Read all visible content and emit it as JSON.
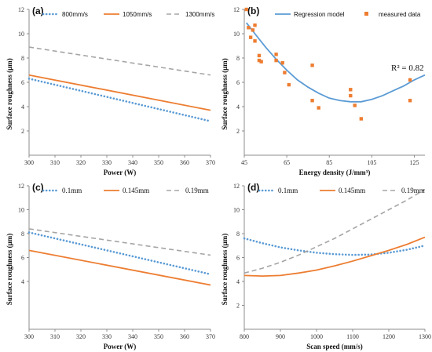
{
  "colors": {
    "blue": "#5B9BD5",
    "orange": "#ED7D31",
    "gray": "#A5A5A5",
    "axis": "#8c8c8c"
  },
  "chart_data": [
    {
      "id": "a",
      "panel_label": "(a)",
      "type": "line",
      "xlabel": "Power (W)",
      "ylabel": "Surface roughness (μm)",
      "xlim": [
        300,
        370
      ],
      "ylim": [
        0,
        12
      ],
      "xticks": [
        300,
        310,
        320,
        330,
        340,
        350,
        360,
        370
      ],
      "yticks": [
        2,
        4,
        6,
        8,
        10,
        12
      ],
      "legend_position": "top",
      "series": [
        {
          "name": "800mm/s",
          "color": "blue",
          "style": "dotted",
          "x": [
            300,
            370
          ],
          "y": [
            6.3,
            2.8
          ]
        },
        {
          "name": "1050mm/s",
          "color": "orange",
          "style": "solid",
          "x": [
            300,
            370
          ],
          "y": [
            6.6,
            3.7
          ]
        },
        {
          "name": "1300mm/s",
          "color": "gray",
          "style": "dashed",
          "x": [
            300,
            370
          ],
          "y": [
            8.9,
            6.6
          ]
        }
      ]
    },
    {
      "id": "b",
      "panel_label": "(b)",
      "type": "scatter",
      "xlabel": "Energy density (J/mm³)",
      "ylabel": "Surface roughness (μm)",
      "xlim": [
        45,
        130
      ],
      "ylim": [
        0,
        12
      ],
      "xticks": [
        45,
        65,
        85,
        105,
        125
      ],
      "yticks": [
        2,
        4,
        6,
        8,
        10,
        12
      ],
      "legend_position": "top",
      "annotation": "R² = 0.82",
      "series": [
        {
          "name": "Regression model",
          "color": "blue",
          "style": "solid",
          "x": [
            46,
            50,
            55,
            60,
            65,
            70,
            75,
            80,
            85,
            90,
            95,
            100,
            105,
            110,
            115,
            120,
            125,
            130
          ],
          "y": [
            10.9,
            10.0,
            8.9,
            7.9,
            7.0,
            6.2,
            5.6,
            5.1,
            4.7,
            4.5,
            4.4,
            4.4,
            4.6,
            4.9,
            5.3,
            5.7,
            6.2,
            6.6
          ]
        },
        {
          "name": "measured data",
          "color": "orange",
          "style": "marker",
          "x": [
            46,
            47,
            48,
            49,
            50,
            50,
            52,
            52,
            53,
            60,
            60,
            63,
            64,
            66,
            77,
            77,
            80,
            95,
            95,
            97,
            100,
            123,
            123
          ],
          "y": [
            12.0,
            10.5,
            9.7,
            10.3,
            10.7,
            9.4,
            8.2,
            7.8,
            7.7,
            8.3,
            7.8,
            7.6,
            6.8,
            5.8,
            7.4,
            4.5,
            3.9,
            5.4,
            4.9,
            4.1,
            3.0,
            6.2,
            4.5
          ]
        }
      ]
    },
    {
      "id": "c",
      "panel_label": "(c)",
      "type": "line",
      "xlabel": "Power (W)",
      "ylabel": "Surface roughness (μm)",
      "xlim": [
        300,
        370
      ],
      "ylim": [
        0,
        12
      ],
      "xticks": [
        300,
        310,
        320,
        330,
        340,
        350,
        360,
        370
      ],
      "yticks": [
        4,
        6,
        8,
        10,
        12
      ],
      "legend_position": "top",
      "series": [
        {
          "name": "0.1mm",
          "color": "blue",
          "style": "dotted",
          "x": [
            300,
            370
          ],
          "y": [
            8.1,
            4.6
          ]
        },
        {
          "name": "0.145mm",
          "color": "orange",
          "style": "solid",
          "x": [
            300,
            370
          ],
          "y": [
            6.6,
            3.7
          ]
        },
        {
          "name": "0.19mm",
          "color": "gray",
          "style": "dashed",
          "x": [
            300,
            370
          ],
          "y": [
            8.4,
            6.2
          ]
        }
      ]
    },
    {
      "id": "d",
      "panel_label": "(d)",
      "type": "line",
      "xlabel": "Scan speed (mm/s)",
      "ylabel": "Surface roughness (μm)",
      "xlim": [
        800,
        1300
      ],
      "ylim": [
        0,
        12
      ],
      "xticks": [
        800,
        900,
        1000,
        1100,
        1200,
        1300
      ],
      "yticks": [
        2,
        4,
        6,
        8,
        10,
        12
      ],
      "legend_position": "top",
      "series": [
        {
          "name": "0.1mm",
          "color": "blue",
          "style": "dotted",
          "x": [
            800,
            850,
            900,
            950,
            1000,
            1050,
            1100,
            1150,
            1200,
            1250,
            1300
          ],
          "y": [
            7.6,
            7.2,
            6.85,
            6.6,
            6.4,
            6.28,
            6.22,
            6.25,
            6.4,
            6.65,
            7.0
          ]
        },
        {
          "name": "0.145mm",
          "color": "orange",
          "style": "solid",
          "x": [
            800,
            850,
            900,
            950,
            1000,
            1050,
            1100,
            1150,
            1200,
            1250,
            1300
          ],
          "y": [
            4.5,
            4.45,
            4.5,
            4.7,
            4.95,
            5.3,
            5.7,
            6.15,
            6.6,
            7.1,
            7.7
          ]
        },
        {
          "name": "0.19mm",
          "color": "gray",
          "style": "dashed",
          "x": [
            800,
            850,
            900,
            950,
            1000,
            1050,
            1100,
            1150,
            1200,
            1250,
            1300
          ],
          "y": [
            4.7,
            5.1,
            5.6,
            6.2,
            6.9,
            7.6,
            8.4,
            9.2,
            10.0,
            10.8,
            11.7
          ]
        }
      ]
    }
  ]
}
